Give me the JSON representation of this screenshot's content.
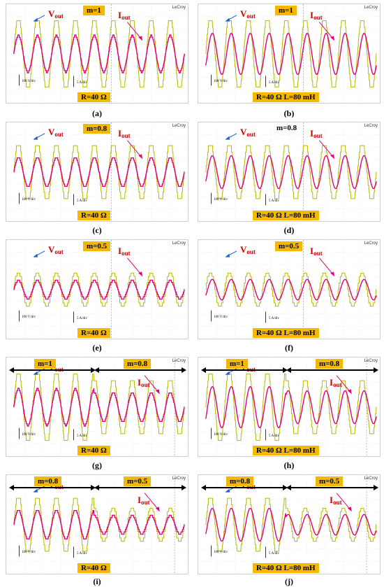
{
  "figure": {
    "scope_brand": "LeCroy",
    "labels": {
      "vout_main": "V",
      "vout_sub": "out",
      "iout_main": "I",
      "iout_sub": "out"
    },
    "scales": {
      "voltage": "100 V/div",
      "current": "5 A/div"
    },
    "panels": [
      {
        "caption": "(a)",
        "modulation": "m=1",
        "load": "R=40 Ω",
        "m_values": [
          1.0
        ],
        "inductive": false
      },
      {
        "caption": "(b)",
        "modulation": "m=1",
        "load": "R=40 Ω L=80 mH",
        "m_values": [
          1.0
        ],
        "inductive": true
      },
      {
        "caption": "(c)",
        "modulation": "m=0.8",
        "load": "R=40 Ω",
        "m_values": [
          0.8
        ],
        "inductive": false
      },
      {
        "caption": "(d)",
        "modulation": "m=0.8",
        "load": "R=40 Ω L=80 mH",
        "m_values": [
          0.8
        ],
        "inductive": true
      },
      {
        "caption": "(e)",
        "modulation": "m=0.5",
        "load": "R=40 Ω",
        "m_values": [
          0.5
        ],
        "inductive": false
      },
      {
        "caption": "(f)",
        "modulation": "m=0.5",
        "load": "R=40 Ω L=80 mH",
        "m_values": [
          0.5
        ],
        "inductive": true
      },
      {
        "caption": "(g)",
        "modulation_left": "m=1",
        "modulation_right": "m=0.8",
        "load": "R=40 Ω",
        "m_values": [
          1.0,
          0.8
        ],
        "inductive": false
      },
      {
        "caption": "(h)",
        "modulation_left": "m=1",
        "modulation_right": "m=0.8",
        "load": "R=40 Ω L=80 mH",
        "m_values": [
          1.0,
          0.8
        ],
        "inductive": true
      },
      {
        "caption": "(i)",
        "modulation_left": "m=0.8",
        "modulation_right": "m=0.5",
        "load": "R=40 Ω",
        "m_values": [
          0.8,
          0.5
        ],
        "inductive": false
      },
      {
        "caption": "(j)",
        "modulation_left": "m=0.8",
        "modulation_right": "m=0.5",
        "load": "R=40 Ω L=80 mH",
        "m_values": [
          0.8,
          0.5
        ],
        "inductive": true
      }
    ],
    "colors": {
      "voltage_trace": "#b5b800",
      "current_trace": "#e0007a",
      "badge": "#f5b800",
      "label_red": "#cc0000",
      "arrow_blue": "#1f5fd0"
    }
  }
}
